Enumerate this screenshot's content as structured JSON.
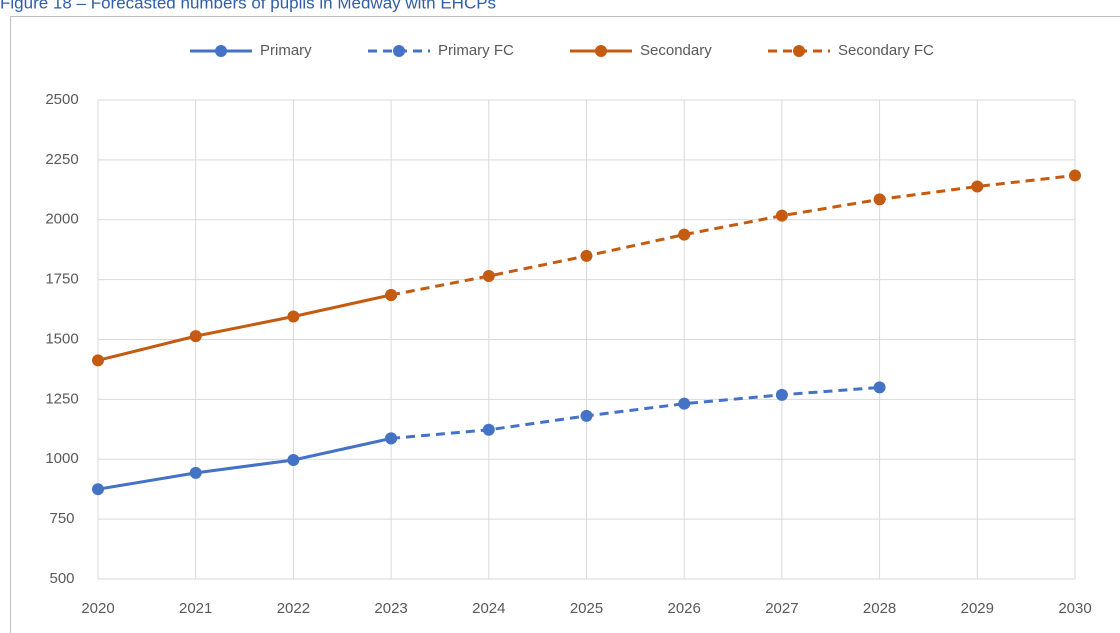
{
  "chart_data": {
    "type": "line",
    "title": "Figure 18 – Forecasted numbers of pupils in Medway with EHCPs",
    "x": [
      2020,
      2021,
      2022,
      2023,
      2024,
      2025,
      2026,
      2027,
      2028,
      2029,
      2030
    ],
    "xlim": [
      2020,
      2030
    ],
    "xticks": [
      2020,
      2021,
      2022,
      2023,
      2024,
      2025,
      2026,
      2027,
      2028,
      2029,
      2030
    ],
    "ylim": [
      500,
      2500
    ],
    "yticks": [
      500,
      750,
      1000,
      1250,
      1500,
      1750,
      2000,
      2250,
      2500
    ],
    "grid": true,
    "legend": "top",
    "series": [
      {
        "name": "Primary",
        "color": "#4472c4",
        "dashed": false,
        "values": [
          875,
          943,
          997,
          1087,
          null,
          null,
          null,
          null,
          null,
          null,
          null
        ]
      },
      {
        "name": "Primary FC",
        "color": "#4472c4",
        "dashed": true,
        "values": [
          null,
          null,
          null,
          1087,
          1123,
          1181,
          1232,
          1269,
          1300,
          null,
          null
        ]
      },
      {
        "name": "Secondary",
        "color": "#c55a11",
        "dashed": false,
        "values": [
          1413,
          1514,
          1596,
          1686,
          null,
          null,
          null,
          null,
          null,
          null,
          null
        ]
      },
      {
        "name": "Secondary FC",
        "color": "#c55a11",
        "dashed": true,
        "values": [
          null,
          null,
          null,
          1686,
          1765,
          1849,
          1938,
          2017,
          2085,
          2139,
          2185
        ]
      }
    ]
  }
}
